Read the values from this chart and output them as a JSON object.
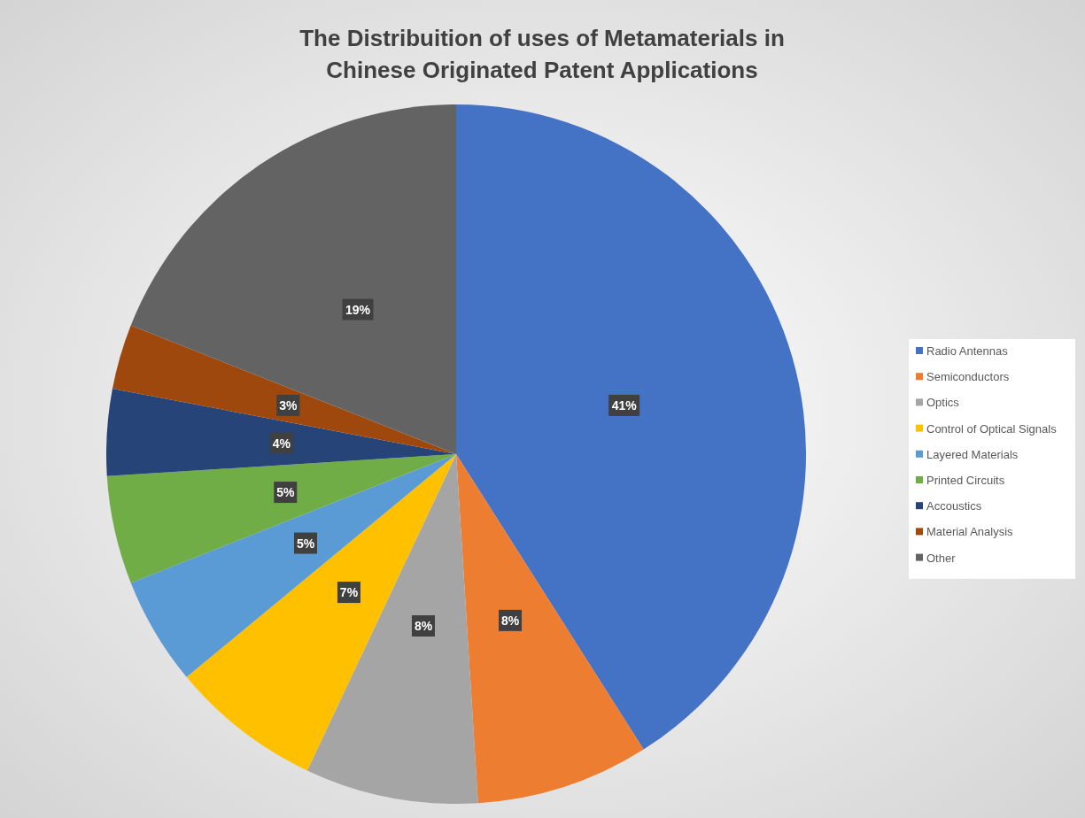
{
  "chart_data": {
    "type": "pie",
    "title": "The Distribuition of uses of Metamaterials in\nChinese Originated Patent Applications",
    "categories": [
      "Radio Antennas",
      "Semiconductors",
      "Optics",
      "Control of Optical Signals",
      "Layered Materials",
      "Printed Circuits",
      "Accoustics",
      "Material Analysis",
      "Other"
    ],
    "values": [
      41,
      8,
      8,
      7,
      5,
      5,
      4,
      3,
      19
    ],
    "colors": [
      "#4472c4",
      "#ed7d31",
      "#a5a5a5",
      "#ffc000",
      "#5b9bd5",
      "#70ad47",
      "#264478",
      "#9e480e",
      "#636363"
    ],
    "value_labels": [
      "41%",
      "8%",
      "8%",
      "7%",
      "5%",
      "5%",
      "4%",
      "3%",
      "19%"
    ],
    "legend": "right"
  }
}
